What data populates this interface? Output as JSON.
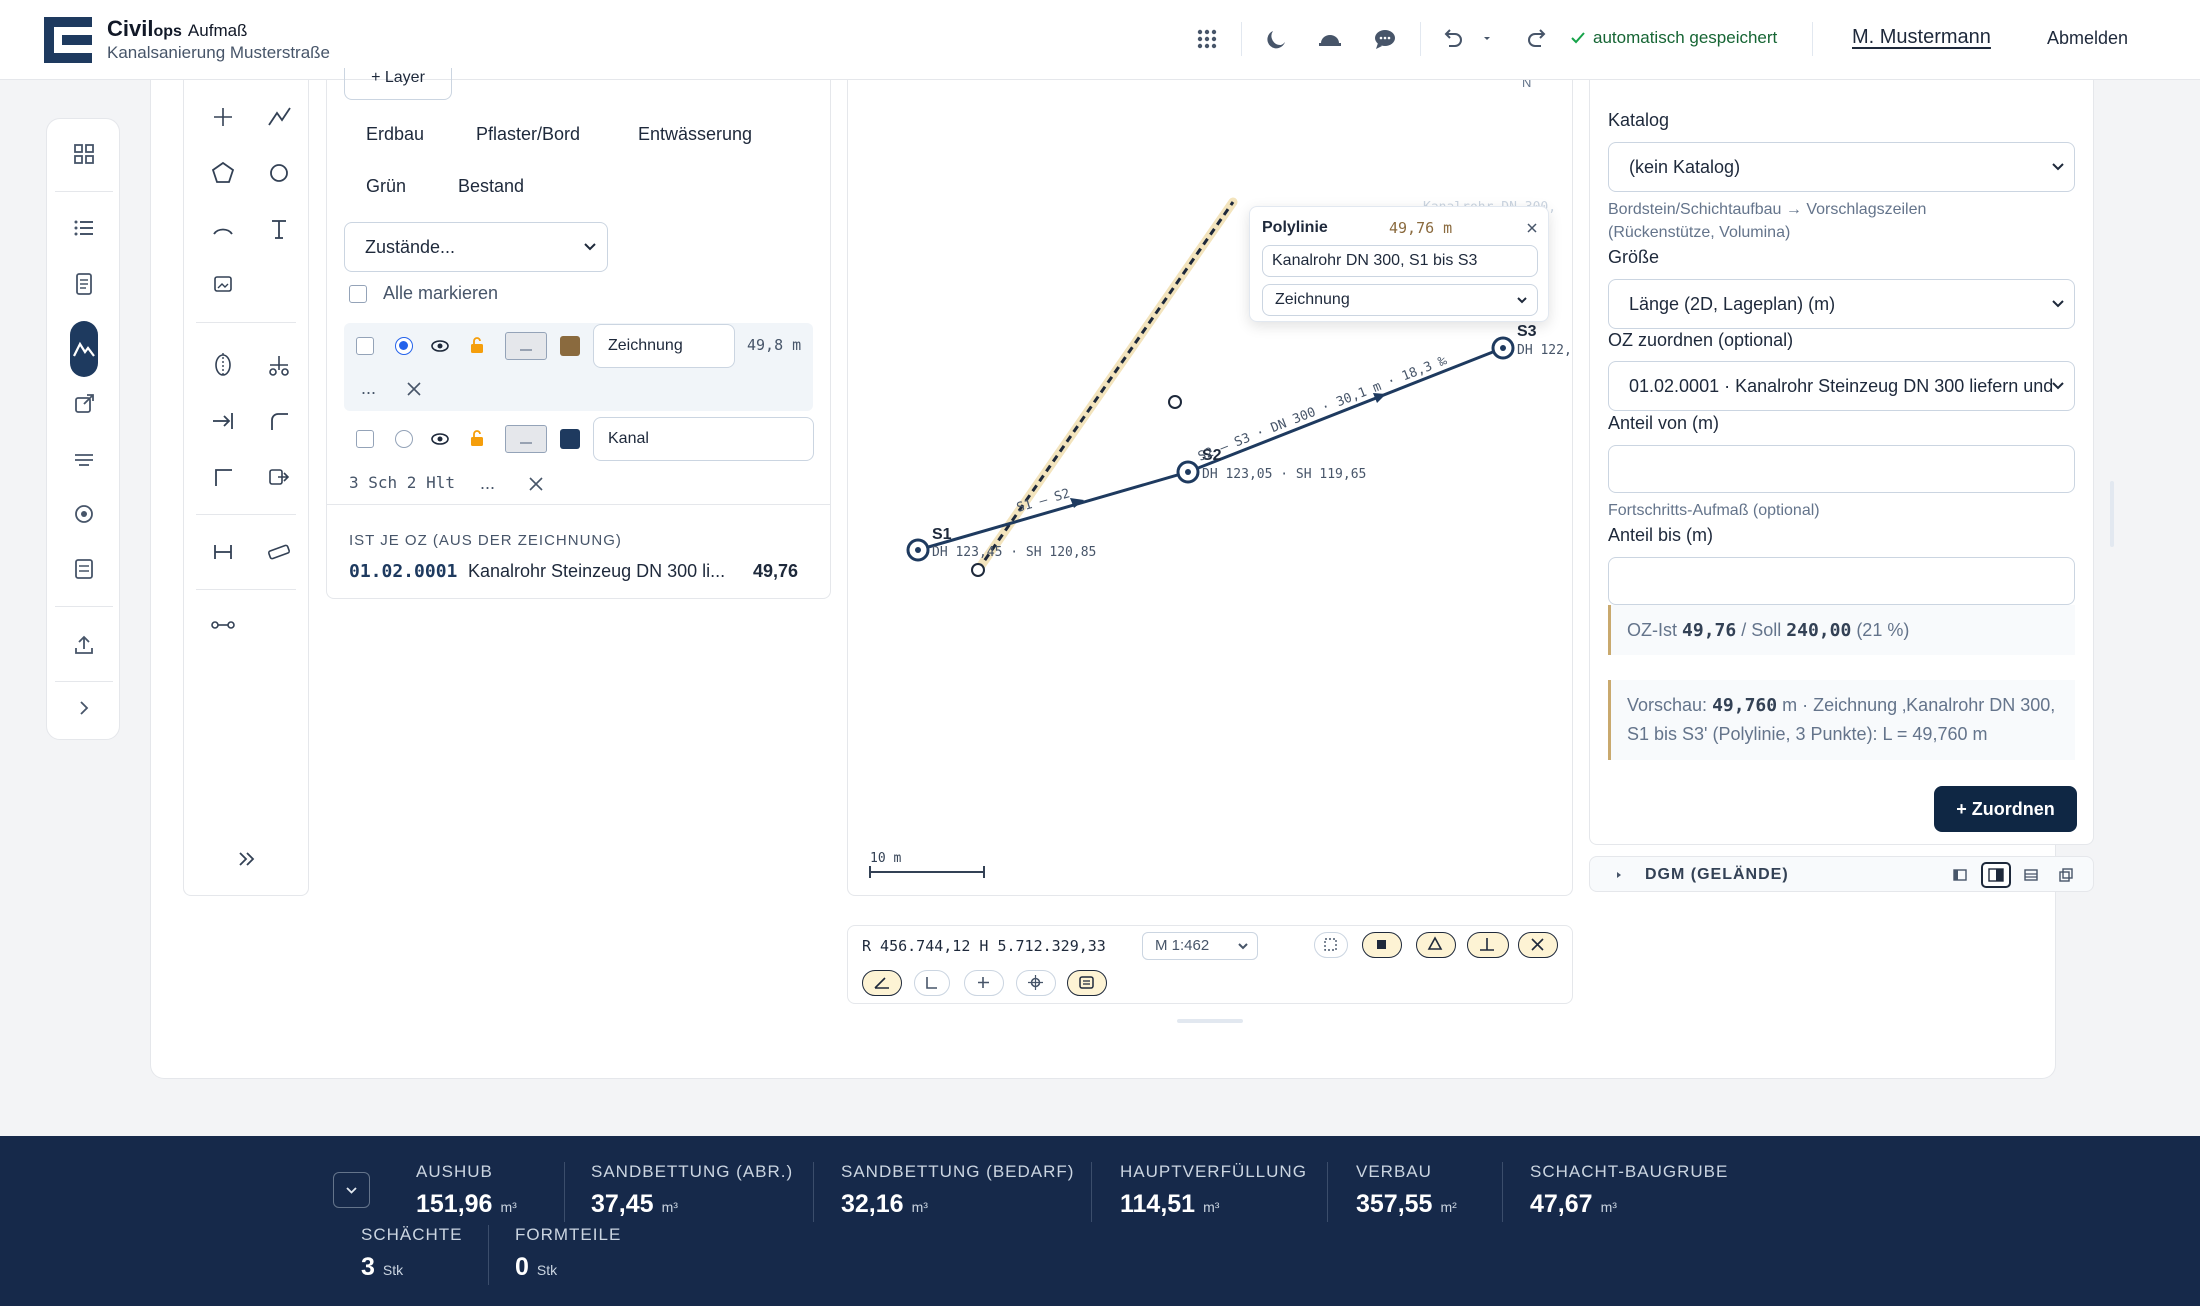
{
  "app": {
    "name": "Civil",
    "name_suffix": "ops",
    "module": "Aufmaß",
    "project": "Kanalsanierung Musterstraße"
  },
  "header": {
    "saved": "automatisch gespeichert",
    "user": "M. Mustermann",
    "logout": "Abmelden",
    "icons": [
      "apps-grid-icon",
      "moon-icon",
      "helmet-icon",
      "chat-icon",
      "undo-icon",
      "chevron-down-icon",
      "redo-icon",
      "check-icon"
    ]
  },
  "layers": {
    "add_layer": "+ Layer",
    "categories": [
      "Erdbau",
      "Pflaster/Bord",
      "Entwässerung",
      "Grün",
      "Bestand"
    ],
    "zustaende": "Zustände...",
    "mark_all": "Alle markieren",
    "rows": [
      {
        "name": "Zeichnung",
        "value": "49,8 m",
        "more": "...",
        "color": "#8a6a3e",
        "active": true
      },
      {
        "name": "Kanal",
        "extra": "3 Sch 2 Hlt",
        "more": "...",
        "color": "#1e3a5f",
        "active": false
      }
    ],
    "oz_heading": "IST JE OZ (AUS DER ZEICHNUNG)",
    "oz_rows": [
      {
        "oz": "01.02.0001",
        "text": "Kanalrohr Steinzeug DN 300 li...",
        "value": "49,76"
      }
    ]
  },
  "map": {
    "north": "N",
    "labels": {
      "s1": "S1",
      "s2": "S2",
      "s3": "S3",
      "s1_info": "DH 123,45 · SH 120,85",
      "s2_info": "DH 123,05 · SH 119,65",
      "s3_info": "DH 122,",
      "seg1": "S1 – S2",
      "seg2": "S2 – S3 · DN 300 · 30,1 m · 18,3 ‰",
      "scale": "10 m",
      "faded": "Kanalrohr DN 300,"
    },
    "popup": {
      "title": "Polylinie",
      "value": "49,76 m",
      "text": "Kanalrohr DN 300, S1 bis S3",
      "select": "Zeichnung"
    }
  },
  "statusbar": {
    "coords": "R 456.744,12 H 5.712.329,33",
    "scale": "M 1:462"
  },
  "right": {
    "katalog_label": "Katalog",
    "katalog_value": "(kein Katalog)",
    "katalog_hint": "Bordstein/Schichtaufbau → Vorschlagszeilen (Rückenstütze, Volumina)",
    "groesse_label": "Größe",
    "groesse_value": "Länge (2D, Lageplan) (m)",
    "oz_label": "OZ zuordnen (optional)",
    "oz_value": "01.02.0001 · Kanalrohr Steinzeug DN 300 liefern und",
    "von_label": "Anteil von (m)",
    "fort_hint": "Fortschritts-Aufmaß (optional)",
    "bis_label": "Anteil bis (m)",
    "ist_prefix": "OZ-Ist",
    "ist_value": "49,76",
    "ist_mid": "/ Soll",
    "soll_value": "240,00",
    "ist_pct": "(21 %)",
    "preview_prefix": "Vorschau:",
    "preview_value": "49,760",
    "preview_text": "m · Zeichnung ‚Kanalrohr DN 300, S1 bis S3' (Polylinie, 3 Punkte): L = 49,760 m",
    "button": "+ Zuordnen",
    "dgm": "DGM (GELÄNDE)"
  },
  "footer": {
    "stats": [
      {
        "label": "AUSHUB",
        "value": "151,96",
        "unit": "m³"
      },
      {
        "label": "SANDBETTUNG (ABR.)",
        "value": "37,45",
        "unit": "m³"
      },
      {
        "label": "SANDBETTUNG (BEDARF)",
        "value": "32,16",
        "unit": "m³"
      },
      {
        "label": "HAUPTVERFÜLLUNG",
        "value": "114,51",
        "unit": "m³"
      },
      {
        "label": "VERBAU",
        "value": "357,55",
        "unit": "m²"
      },
      {
        "label": "SCHACHT-BAUGRUBE",
        "value": "47,67",
        "unit": "m³"
      },
      {
        "label": "SCHÄCHTE",
        "value": "3",
        "unit": "Stk"
      },
      {
        "label": "FORMTEILE",
        "value": "0",
        "unit": "Stk"
      }
    ]
  }
}
